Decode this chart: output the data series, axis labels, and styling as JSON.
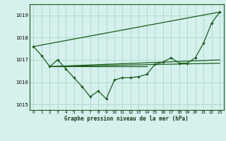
{
  "title": "Graphe pression niveau de la mer (hPa)",
  "background_color": "#d6f0ee",
  "grid_color": "#aaddcc",
  "line_color": "#1a5c1a",
  "xlim": [
    -0.5,
    23.5
  ],
  "ylim": [
    1014.75,
    1019.5
  ],
  "yticks": [
    1015,
    1016,
    1017,
    1018,
    1019
  ],
  "xticks": [
    0,
    1,
    2,
    3,
    4,
    5,
    6,
    7,
    8,
    9,
    10,
    11,
    12,
    13,
    14,
    15,
    16,
    17,
    18,
    19,
    20,
    21,
    22,
    23
  ],
  "hours": [
    0,
    1,
    2,
    3,
    4,
    5,
    6,
    7,
    8,
    9,
    10,
    11,
    12,
    13,
    14,
    15,
    16,
    17,
    18,
    19,
    20,
    21,
    22,
    23
  ],
  "pressure_main": [
    1017.6,
    1017.2,
    1016.7,
    1017.0,
    1016.6,
    1016.2,
    1015.8,
    1015.35,
    1015.6,
    1015.25,
    1016.1,
    1016.2,
    1016.2,
    1016.25,
    1016.35,
    1016.8,
    1016.9,
    1017.1,
    1016.85,
    1016.85,
    1017.1,
    1017.75,
    1018.65,
    1019.15
  ],
  "ref_line1": [
    [
      0,
      23
    ],
    [
      1017.6,
      1019.15
    ]
  ],
  "ref_line2": [
    [
      2,
      23
    ],
    [
      1016.7,
      1017.0
    ]
  ],
  "ref_line3": [
    [
      2,
      23
    ],
    [
      1016.7,
      1016.85
    ]
  ],
  "ref_line4": [
    [
      2,
      14
    ],
    [
      1016.7,
      1016.7
    ]
  ]
}
